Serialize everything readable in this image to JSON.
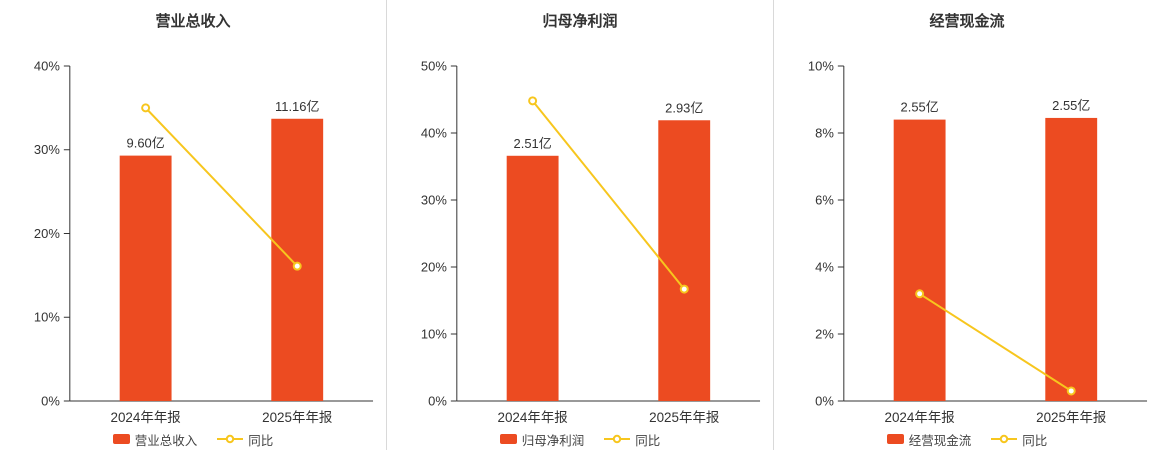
{
  "page": {
    "background": "#ffffff",
    "divider_color": "#d9d9d9",
    "axis_color": "#333333"
  },
  "chart_data": [
    {
      "type": "bar+line",
      "title": "营业总收入",
      "categories": [
        "2024年年报",
        "2025年年报"
      ],
      "bar_series": {
        "name": "营业总收入",
        "value_labels": [
          "9.60亿",
          "11.16亿"
        ],
        "axis_pct": [
          29.3,
          33.7
        ],
        "color": "#ec4b21"
      },
      "line_series": {
        "name": "同比",
        "values_pct": [
          35.0,
          16.1
        ],
        "color": "#f7c61e"
      },
      "ylim": [
        0,
        40
      ],
      "ytick_labels": [
        "0%",
        "10%",
        "20%",
        "30%",
        "40%"
      ],
      "grid": false,
      "legend_position": "bottom"
    },
    {
      "type": "bar+line",
      "title": "归母净利润",
      "categories": [
        "2024年年报",
        "2025年年报"
      ],
      "bar_series": {
        "name": "归母净利润",
        "value_labels": [
          "2.51亿",
          "2.93亿"
        ],
        "axis_pct": [
          36.6,
          41.9
        ],
        "color": "#ec4b21"
      },
      "line_series": {
        "name": "同比",
        "values_pct": [
          44.8,
          16.7
        ],
        "color": "#f7c61e"
      },
      "ylim": [
        0,
        50
      ],
      "ytick_labels": [
        "0%",
        "10%",
        "20%",
        "30%",
        "40%",
        "50%"
      ],
      "grid": false,
      "legend_position": "bottom"
    },
    {
      "type": "bar+line",
      "title": "经营现金流",
      "categories": [
        "2024年年报",
        "2025年年报"
      ],
      "bar_series": {
        "name": "经营现金流",
        "value_labels": [
          "2.55亿",
          "2.55亿"
        ],
        "axis_pct": [
          8.4,
          8.45
        ],
        "color": "#ec4b21"
      },
      "line_series": {
        "name": "同比",
        "values_pct": [
          3.2,
          0.3
        ],
        "color": "#f7c61e"
      },
      "ylim": [
        0,
        10
      ],
      "ytick_labels": [
        "0%",
        "2%",
        "4%",
        "6%",
        "8%",
        "10%"
      ],
      "grid": false,
      "legend_position": "bottom"
    }
  ]
}
